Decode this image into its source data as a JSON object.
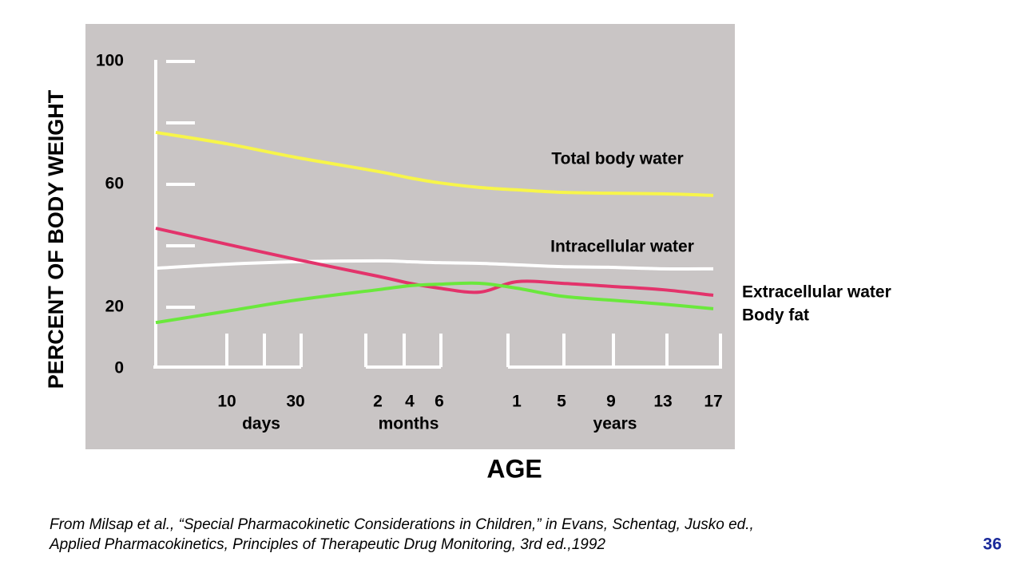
{
  "chart_data": {
    "type": "line",
    "xlabel": "AGE",
    "ylabel": "PERCENT OF BODY WEIGHT",
    "categories": [
      null,
      "10",
      "30",
      "2",
      "4",
      "6",
      null,
      "1",
      "5",
      "9",
      "13",
      "17"
    ],
    "groups": [
      {
        "label": "days",
        "from": 1,
        "to": 2
      },
      {
        "label": "months",
        "from": 3,
        "to": 5
      },
      {
        "label": "years",
        "from": 7,
        "to": 11
      }
    ],
    "series": [
      {
        "name": "Total body water",
        "color": "#f7f54a",
        "values": [
          76.9,
          73.2,
          68.8,
          64.2,
          62.1,
          60.5,
          59,
          58.2,
          57.4,
          57.1,
          56.9,
          56.4
        ]
      },
      {
        "name": "Intracellular water",
        "color": "#ffffff",
        "values": [
          32.7,
          34,
          34.8,
          35.1,
          34.8,
          34.5,
          34.3,
          33.8,
          33.2,
          33,
          32.5,
          32.5
        ]
      },
      {
        "name": "Extracellular water",
        "color": "#e3336b",
        "values": [
          45.7,
          40.5,
          35.6,
          30.1,
          27.8,
          26.2,
          24.9,
          28.3,
          27.8,
          26.8,
          25.7,
          23.9
        ]
      },
      {
        "name": "Body fat",
        "color": "#6ae83c",
        "values": [
          15,
          18.7,
          22.3,
          25.7,
          27,
          27.5,
          27.8,
          26.2,
          23.6,
          22.3,
          21,
          19.5
        ]
      }
    ],
    "ylim": [
      0,
      100
    ],
    "yticks": [
      0,
      20,
      60,
      100
    ],
    "yticks_minor": [
      40,
      80
    ]
  },
  "footer": {
    "citation": [
      "From Milsap et al., “Special Pharmacokinetic Considerations in Children,” in Evans, Schentag, Jusko ed.,",
      "Applied Pharmacokinetics, Principles of Therapeutic Drug Monitoring, 3rd ed.,1992"
    ],
    "page_number": "36"
  }
}
